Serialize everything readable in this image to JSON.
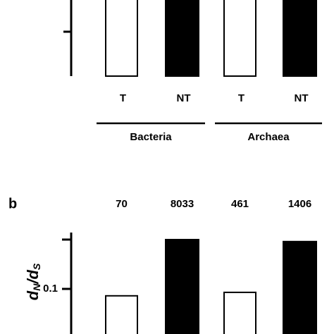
{
  "chart_data": [
    {
      "type": "bar",
      "categories": [
        "T",
        "NT",
        "T",
        "NT"
      ],
      "colors": [
        "#ffffff",
        "#000000",
        "#ffffff",
        "#000000"
      ],
      "groups": [
        "Bacteria",
        "Archaea"
      ]
    },
    {
      "type": "bar",
      "panel": "b",
      "ylabel": [
        "d",
        "N",
        "/d",
        "S"
      ],
      "counts": [
        "70",
        "8033",
        "461",
        "1406"
      ],
      "values": [
        0.086,
        0.2,
        0.093,
        0.196
      ],
      "colors": [
        "#ffffff",
        "#000000",
        "#ffffff",
        "#000000"
      ],
      "ylim": [
        0,
        0.2
      ],
      "yticks": [
        0.1,
        {
          "value": 0.2,
          "label": null
        }
      ]
    }
  ]
}
